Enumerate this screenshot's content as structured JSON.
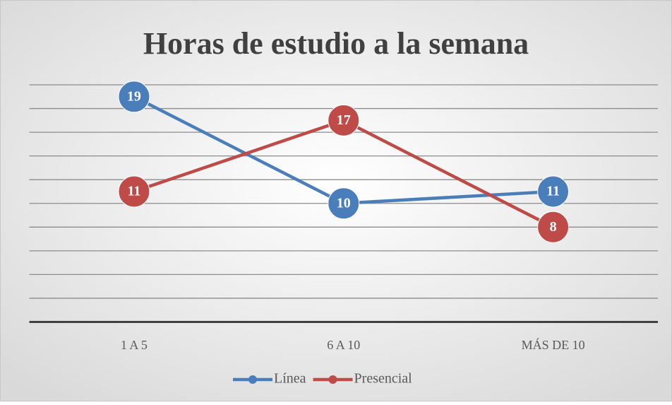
{
  "chart_data": {
    "type": "line",
    "title": "Horas de estudio a la semana",
    "categories": [
      "1 A 5",
      "6 A 10",
      "MÁS DE 10"
    ],
    "series": [
      {
        "name": "Línea",
        "color": "#4a7ebb",
        "values": [
          19,
          10,
          11
        ]
      },
      {
        "name": "Presencial",
        "color": "#be4b48",
        "values": [
          11,
          17,
          8
        ]
      }
    ],
    "ylim": [
      0,
      20
    ],
    "yticks": [
      0,
      2,
      4,
      6,
      8,
      10,
      12,
      14,
      16,
      18,
      20
    ],
    "grid": true,
    "legend": "bottom"
  }
}
